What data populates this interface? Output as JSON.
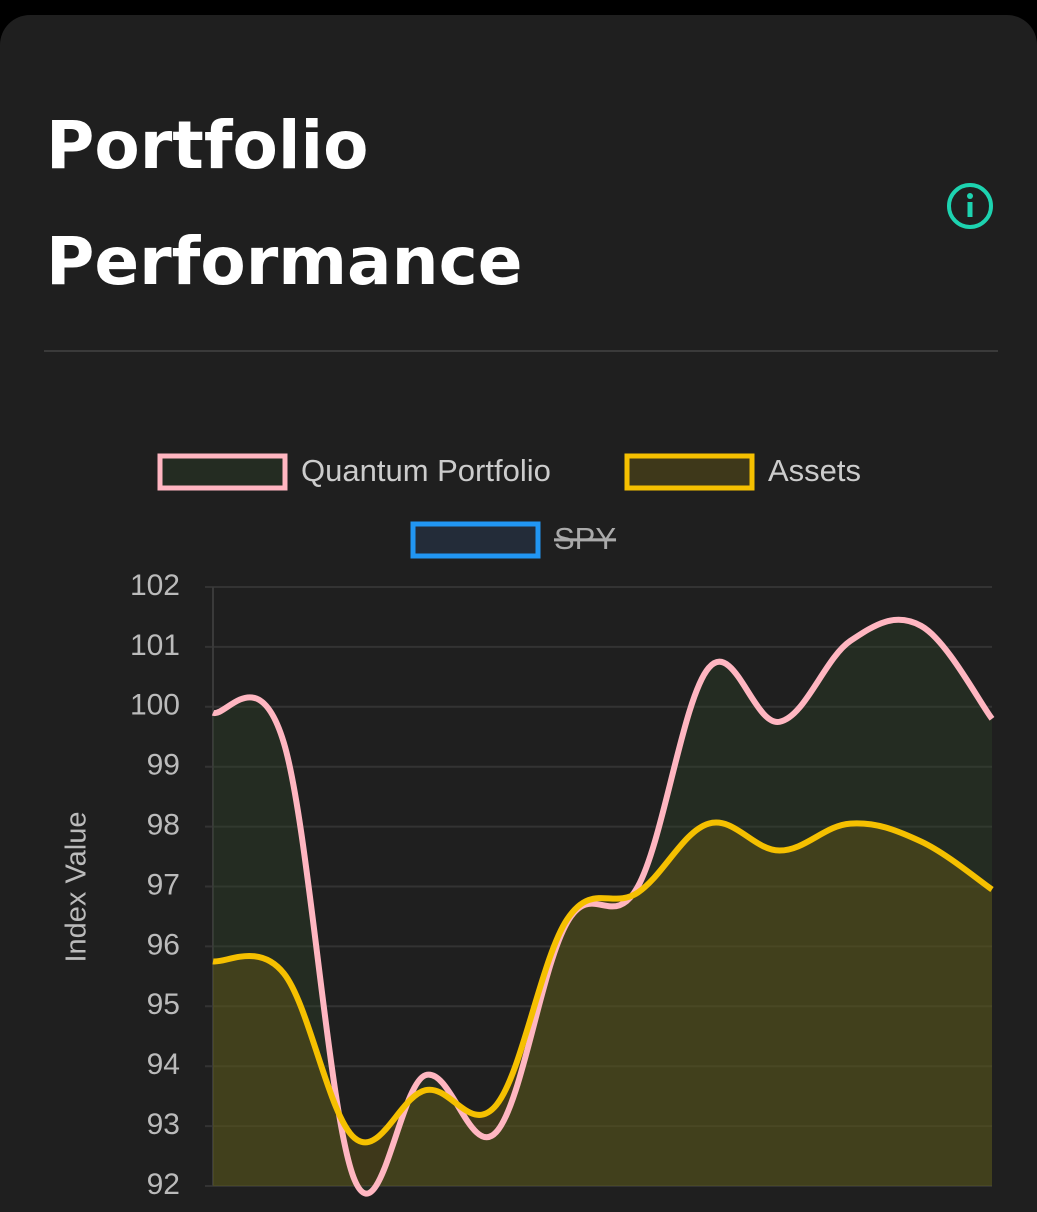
{
  "chart_data": {
    "type": "line",
    "title": "Portfolio Performance",
    "y_label": "Index Value",
    "categories": [
      null,
      null,
      null,
      null,
      null,
      null,
      null,
      null,
      null,
      null,
      null,
      null
    ],
    "series": [
      {
        "name": "Quantum Portfolio",
        "color": "#ffb6c1",
        "fill_color": "rgba(45,70,40,0.35)",
        "values": [
          99.9,
          99.4,
          92.1,
          93.85,
          92.9,
          96.4,
          97.0,
          100.65,
          99.75,
          101.1,
          101.35,
          99.8
        ]
      },
      {
        "name": "Assets",
        "color": "#f5c000",
        "fill_color": "rgba(110,95,20,0.4)",
        "values": [
          95.75,
          95.55,
          92.8,
          93.6,
          93.35,
          96.45,
          96.9,
          98.05,
          97.6,
          98.05,
          97.75,
          96.95
        ]
      },
      {
        "name": "SPY",
        "color": "#2196f3",
        "fill_color": "rgba(35,45,60,0.9)",
        "hidden": true
      }
    ],
    "ylim": [
      92,
      102
    ],
    "yticks": [
      92,
      93,
      94,
      95,
      96,
      97,
      98,
      99,
      100,
      101,
      102
    ],
    "grid": true
  }
}
